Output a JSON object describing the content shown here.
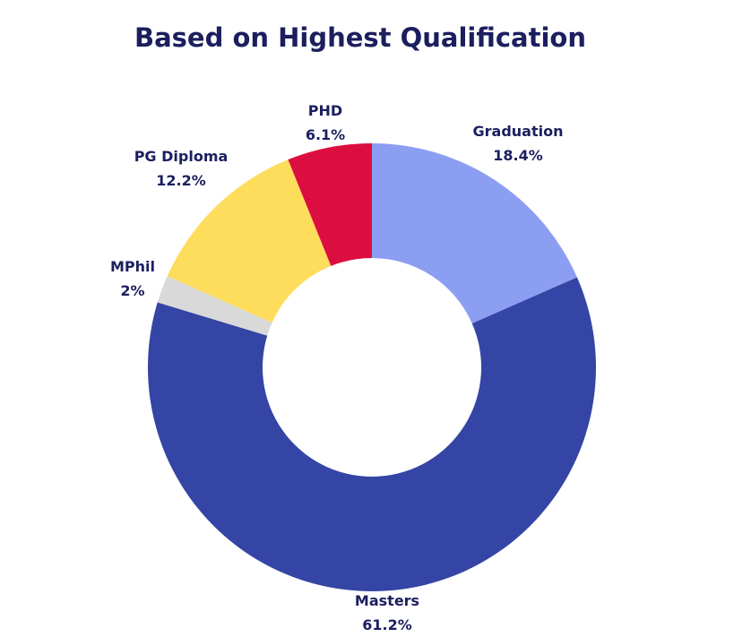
{
  "chart_data": {
    "type": "pie",
    "variant": "donut",
    "title": "Based on Highest Qualification",
    "legend": "none",
    "slices": [
      {
        "label": "Graduation",
        "value": 18.4,
        "value_label": "18.4%",
        "color": "#8c9ef2"
      },
      {
        "label": "Masters",
        "value": 61.2,
        "value_label": "61.2%",
        "color": "#3445a5"
      },
      {
        "label": "MPhil",
        "value": 2.0,
        "value_label": "2%",
        "color": "#d9d9d9"
      },
      {
        "label": "PG Diploma",
        "value": 12.2,
        "value_label": "12.2%",
        "color": "#ffdd5c"
      },
      {
        "label": "PHD",
        "value": 6.1,
        "value_label": "6.1%",
        "color": "#dc0e3f"
      }
    ]
  }
}
